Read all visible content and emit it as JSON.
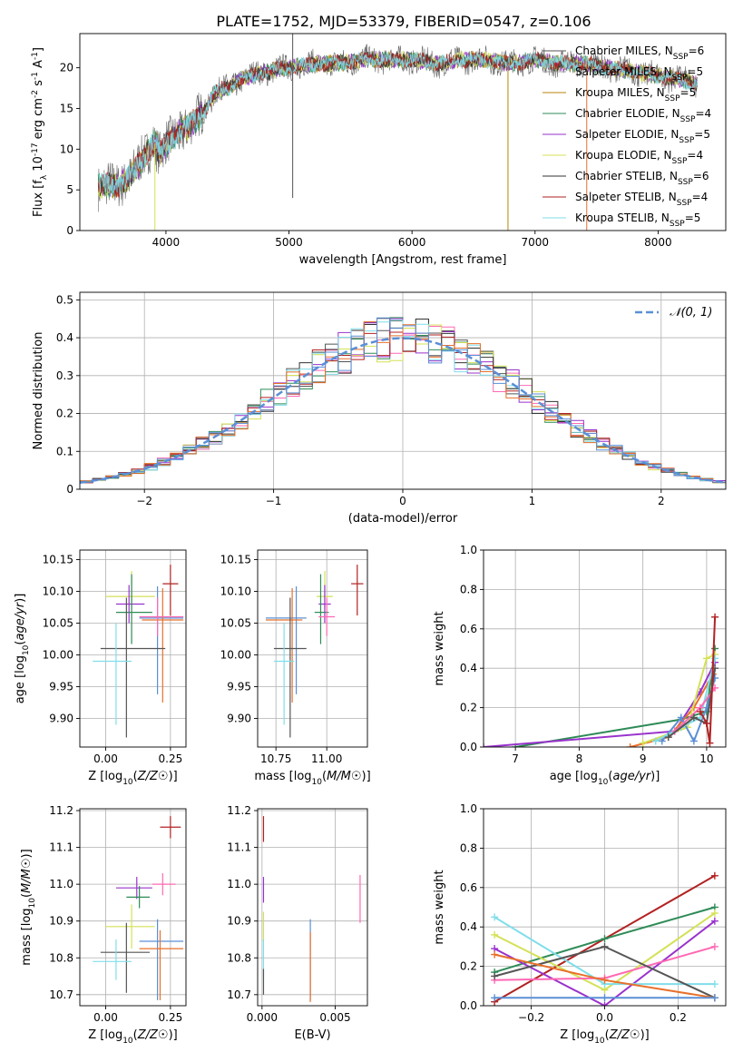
{
  "figure": {
    "title": "PLATE=1752, MJD=53379, FIBERID=0547, z=0.106"
  },
  "chart_data": [
    {
      "id": "spectrum",
      "type": "line",
      "xlabel": "wavelength [Angstrom, rest frame]",
      "ylabel": "Flux [f_λ 10^-17 erg cm^-2 s^-1 A^-1]",
      "xlim": [
        3300,
        8550
      ],
      "ylim": [
        0,
        24.2
      ],
      "xticks": [
        4000,
        5000,
        6000,
        7000,
        8000
      ],
      "yticks": [
        0,
        5,
        10,
        15,
        20
      ],
      "legend_position": "top-right",
      "legend": [
        {
          "label": "Chabrier MILES, N_SSP=6",
          "color": "#555555"
        },
        {
          "label": "Salpeter MILES, N_SSP=5",
          "color": "#a0a0a0"
        },
        {
          "label": "Kroupa MILES, N_SSP=5",
          "color": "#b8860b"
        },
        {
          "label": "Chabrier ELODIE, N_SSP=4",
          "color": "#2e8b57"
        },
        {
          "label": "Salpeter ELODIE, N_SSP=5",
          "color": "#9932cc"
        },
        {
          "label": "Kroupa ELODIE, N_SSP=4",
          "color": "#d4e157"
        },
        {
          "label": "Chabrier STELIB, N_SSP=6",
          "color": "#333333"
        },
        {
          "label": "Salpeter STELIB, N_SSP=4",
          "color": "#b22222"
        },
        {
          "label": "Kroupa STELIB, N_SSP=5",
          "color": "#80deea"
        }
      ],
      "continuum_knots": {
        "x": [
          3450,
          3600,
          3700,
          3800,
          3900,
          3950,
          4000,
          4100,
          4200,
          4300,
          4400,
          4500,
          4600,
          4800,
          5000,
          5200,
          5400,
          5600,
          5800,
          6000,
          6200,
          6400,
          6600,
          6800,
          7000,
          7200,
          7400,
          7600,
          7800,
          8000,
          8200,
          8320
        ],
        "y": [
          5.5,
          5.5,
          6.5,
          8.5,
          11.0,
          9.5,
          10.5,
          12.0,
          13.0,
          14.5,
          17.0,
          17.5,
          18.5,
          19.5,
          20.0,
          20.5,
          20.5,
          21.0,
          21.0,
          21.0,
          20.5,
          21.0,
          21.0,
          20.5,
          21.0,
          20.5,
          20.5,
          20.0,
          19.5,
          19.0,
          18.5,
          18.0
        ]
      },
      "sharp_spikes": [
        {
          "x": 3910,
          "y_low": 0
        },
        {
          "x": 5030,
          "y_high": 24.2,
          "y_low": 4
        },
        {
          "x": 6780,
          "y_low": 0
        },
        {
          "x": 7420,
          "y_low": 0
        }
      ]
    },
    {
      "id": "residuals",
      "type": "line",
      "xlabel": "(data-model)/error",
      "ylabel": "Normed distribution",
      "xlim": [
        -2.5,
        2.5
      ],
      "ylim": [
        0,
        0.52
      ],
      "xticks": [
        -2,
        -1,
        0,
        1,
        2
      ],
      "yticks": [
        0.0,
        0.1,
        0.2,
        0.3,
        0.4,
        0.5
      ],
      "legend_position": "top-right",
      "series": [
        {
          "name": "N(0,1)",
          "label_text": "𝒩(0, 1)",
          "color": "#5b8fd6",
          "style": "dashed"
        }
      ],
      "histogram_bin_width": 0.1,
      "histogram_colors": [
        "#555555",
        "#ff69b4",
        "#2e8b57",
        "#9932cc",
        "#d4e157",
        "#333333",
        "#b22222",
        "#80deea",
        "#e8702a",
        "#5b8fd6"
      ]
    },
    {
      "id": "age_vs_Z",
      "type": "scatter",
      "xlabel": "Z [log10(Z/Z☉)]",
      "ylabel": "age [log10(age/yr)]",
      "xlim": [
        -0.1,
        0.31
      ],
      "ylim": [
        9.855,
        10.165
      ],
      "xticks": [
        0.0,
        0.25
      ],
      "xtick_labels": [
        "0.00",
        "0.25"
      ],
      "yticks": [
        9.9,
        9.95,
        10.0,
        10.05,
        10.1,
        10.15
      ],
      "ytick_labels": [
        "9.90",
        "9.95",
        "10.00",
        "10.05",
        "10.10",
        "10.15"
      ],
      "points": [
        {
          "x": 0.1,
          "y": 10.092,
          "xerr": [
            0.1,
            0.09
          ],
          "yerr": [
            0.02,
            0.04
          ],
          "color": "#d4e157"
        },
        {
          "x": 0.09,
          "y": 10.08,
          "xerr": [
            0.05,
            0.06
          ],
          "yerr": [
            0.03,
            0.03
          ],
          "color": "#9932cc"
        },
        {
          "x": 0.1,
          "y": 10.067,
          "xerr": [
            0.06,
            0.08
          ],
          "yerr": [
            0.05,
            0.06
          ],
          "color": "#2e8b57"
        },
        {
          "x": 0.2,
          "y": 10.058,
          "xerr": [
            0.07,
            0.1
          ],
          "yerr": [
            0.12,
            0.05
          ],
          "color": "#5b8fd6"
        },
        {
          "x": 0.22,
          "y": 10.055,
          "xerr": [
            0.08,
            0.08
          ],
          "yerr": [
            0.13,
            0.05
          ],
          "color": "#e8702a"
        },
        {
          "x": 0.2,
          "y": 10.06,
          "xerr": [
            0.07,
            0.1
          ],
          "yerr": [
            0.03,
            0.03
          ],
          "color": "#ff69b4"
        },
        {
          "x": 0.25,
          "y": 10.112,
          "xerr": [
            0.03,
            0.03
          ],
          "yerr": [
            0.05,
            0.03
          ],
          "color": "#b22222"
        },
        {
          "x": 0.08,
          "y": 10.01,
          "xerr": [
            0.1,
            0.15
          ],
          "yerr": [
            0.14,
            0.08
          ],
          "color": "#555555"
        },
        {
          "x": 0.04,
          "y": 9.99,
          "xerr": [
            0.09,
            0.06
          ],
          "yerr": [
            0.1,
            0.06
          ],
          "color": "#80deea"
        }
      ]
    },
    {
      "id": "age_vs_mass",
      "type": "scatter",
      "xlabel": "mass [log10(M/M☉)]",
      "ylabel": "",
      "xlim": [
        10.66,
        11.2
      ],
      "ylim": [
        9.855,
        10.165
      ],
      "xticks": [
        10.75,
        11.0
      ],
      "xtick_labels": [
        "10.75",
        "11.00"
      ],
      "yticks": [
        9.9,
        9.95,
        10.0,
        10.05,
        10.1,
        10.15
      ],
      "ytick_labels": [
        "9.90",
        "9.95",
        "10.00",
        "10.05",
        "10.10",
        "10.15"
      ],
      "points": [
        {
          "x": 10.99,
          "y": 10.092,
          "xerr": [
            0.04,
            0.04
          ],
          "yerr": [
            0.02,
            0.04
          ],
          "color": "#d4e157"
        },
        {
          "x": 10.99,
          "y": 10.08,
          "xerr": [
            0.03,
            0.03
          ],
          "yerr": [
            0.03,
            0.03
          ],
          "color": "#9932cc"
        },
        {
          "x": 10.97,
          "y": 10.067,
          "xerr": [
            0.03,
            0.04
          ],
          "yerr": [
            0.05,
            0.06
          ],
          "color": "#2e8b57"
        },
        {
          "x": 10.85,
          "y": 10.058,
          "xerr": [
            0.15,
            0.05
          ],
          "yerr": [
            0.12,
            0.05
          ],
          "color": "#5b8fd6"
        },
        {
          "x": 10.83,
          "y": 10.055,
          "xerr": [
            0.13,
            0.05
          ],
          "yerr": [
            0.13,
            0.05
          ],
          "color": "#e8702a"
        },
        {
          "x": 11.0,
          "y": 10.06,
          "xerr": [
            0.04,
            0.04
          ],
          "yerr": [
            0.03,
            0.03
          ],
          "color": "#ff69b4"
        },
        {
          "x": 11.15,
          "y": 10.112,
          "xerr": [
            0.03,
            0.03
          ],
          "yerr": [
            0.05,
            0.03
          ],
          "color": "#b22222"
        },
        {
          "x": 10.82,
          "y": 10.01,
          "xerr": [
            0.08,
            0.08
          ],
          "yerr": [
            0.14,
            0.08
          ],
          "color": "#555555"
        },
        {
          "x": 10.79,
          "y": 9.99,
          "xerr": [
            0.05,
            0.05
          ],
          "yerr": [
            0.1,
            0.06
          ],
          "color": "#80deea"
        }
      ]
    },
    {
      "id": "mass_weight_vs_age",
      "type": "line",
      "xlabel": "age [log10(age/yr)]",
      "ylabel": "mass weight",
      "xlim": [
        6.5,
        10.3
      ],
      "ylim": [
        0,
        1.0
      ],
      "xticks": [
        7,
        8,
        9,
        10
      ],
      "yticks": [
        0.0,
        0.2,
        0.4,
        0.6,
        0.8,
        1.0
      ],
      "ytick_labels": [
        "0.0",
        "0.2",
        "0.4",
        "0.6",
        "0.8",
        "1.0"
      ],
      "series": [
        {
          "color": "#2e8b57",
          "x": [
            7.0,
            9.6,
            10.0,
            10.13
          ],
          "y": [
            0.0,
            0.14,
            0.18,
            0.5
          ]
        },
        {
          "color": "#9932cc",
          "x": [
            6.5,
            9.5,
            9.9,
            10.13
          ],
          "y": [
            0.0,
            0.08,
            0.28,
            0.43
          ]
        },
        {
          "color": "#e8702a",
          "x": [
            8.8,
            9.4,
            9.8,
            10.1
          ],
          "y": [
            0.0,
            0.05,
            0.2,
            0.37
          ]
        },
        {
          "color": "#d4e157",
          "x": [
            9.0,
            9.7,
            10.0,
            10.13
          ],
          "y": [
            0.02,
            0.1,
            0.45,
            0.47
          ]
        },
        {
          "color": "#5b8fd6",
          "x": [
            9.3,
            9.6,
            9.8,
            10.0,
            10.13
          ],
          "y": [
            0.03,
            0.15,
            0.03,
            0.2,
            0.35
          ]
        },
        {
          "color": "#80deea",
          "x": [
            9.2,
            9.6,
            9.9,
            10.13
          ],
          "y": [
            0.03,
            0.1,
            0.15,
            0.45
          ]
        },
        {
          "color": "#ff69b4",
          "x": [
            9.5,
            9.9,
            10.13
          ],
          "y": [
            0.08,
            0.2,
            0.3
          ]
        },
        {
          "color": "#555555",
          "x": [
            9.4,
            9.8,
            10.0,
            10.13
          ],
          "y": [
            0.05,
            0.15,
            0.12,
            0.4
          ]
        },
        {
          "color": "#b22222",
          "x": [
            9.9,
            10.0,
            10.05,
            10.13
          ],
          "y": [
            0.18,
            0.12,
            0.02,
            0.66
          ]
        }
      ]
    },
    {
      "id": "mass_vs_Z",
      "type": "scatter",
      "xlabel": "Z [log10(Z/Z☉)]",
      "ylabel": "mass [log10(M/M☉)]",
      "xlim": [
        -0.1,
        0.31
      ],
      "ylim": [
        10.67,
        11.205
      ],
      "xticks": [
        0.0,
        0.25
      ],
      "xtick_labels": [
        "0.00",
        "0.25"
      ],
      "yticks": [
        10.7,
        10.8,
        10.9,
        11.0,
        11.1,
        11.2
      ],
      "ytick_labels": [
        "10.7",
        "10.8",
        "10.9",
        "11.0",
        "11.1",
        "11.2"
      ],
      "points": [
        {
          "x": 0.25,
          "y": 11.155,
          "xerr": [
            0.04,
            0.04
          ],
          "yerr": [
            0.03,
            0.03
          ],
          "color": "#b22222"
        },
        {
          "x": 0.12,
          "y": 10.99,
          "xerr": [
            0.08,
            0.06
          ],
          "yerr": [
            0.03,
            0.03
          ],
          "color": "#9932cc"
        },
        {
          "x": 0.22,
          "y": 11.0,
          "xerr": [
            0.04,
            0.05
          ],
          "yerr": [
            0.03,
            0.03
          ],
          "color": "#ff69b4"
        },
        {
          "x": 0.13,
          "y": 10.965,
          "xerr": [
            0.05,
            0.04
          ],
          "yerr": [
            0.03,
            0.03
          ],
          "color": "#2e8b57"
        },
        {
          "x": 0.1,
          "y": 10.885,
          "xerr": [
            0.1,
            0.09
          ],
          "yerr": [
            0.06,
            0.06
          ],
          "color": "#d4e157"
        },
        {
          "x": 0.2,
          "y": 10.845,
          "xerr": [
            0.07,
            0.1
          ],
          "yerr": [
            0.16,
            0.06
          ],
          "color": "#5b8fd6"
        },
        {
          "x": 0.21,
          "y": 10.825,
          "xerr": [
            0.08,
            0.09
          ],
          "yerr": [
            0.14,
            0.05
          ],
          "color": "#e8702a"
        },
        {
          "x": 0.08,
          "y": 10.815,
          "xerr": [
            0.1,
            0.09
          ],
          "yerr": [
            0.11,
            0.08
          ],
          "color": "#555555"
        },
        {
          "x": 0.04,
          "y": 10.79,
          "xerr": [
            0.09,
            0.06
          ],
          "yerr": [
            0.05,
            0.06
          ],
          "color": "#80deea"
        }
      ]
    },
    {
      "id": "mass_vs_ebv",
      "type": "scatter",
      "xlabel": "E(B-V)",
      "ylabel": "",
      "xlim": [
        -0.0003,
        0.0072
      ],
      "ylim": [
        10.67,
        11.205
      ],
      "xticks": [
        0.0,
        0.005
      ],
      "xtick_labels": [
        "0.000",
        "0.005"
      ],
      "yticks": [
        10.7,
        10.8,
        10.9,
        11.0,
        11.1,
        11.2
      ],
      "ytick_labels": [
        "10.7",
        "10.8",
        "10.9",
        "11.0",
        "11.1",
        "11.2"
      ],
      "points": [
        {
          "x": 0.0001,
          "y": 11.155,
          "xerr": [
            0.0,
            0.0
          ],
          "yerr": [
            0.04,
            0.03
          ],
          "color": "#b22222"
        },
        {
          "x": 0.0001,
          "y": 10.99,
          "xerr": [
            0.0,
            0.0
          ],
          "yerr": [
            0.04,
            0.03
          ],
          "color": "#9932cc"
        },
        {
          "x": 0.0001,
          "y": 10.885,
          "xerr": [
            0.0,
            0.0
          ],
          "yerr": [
            0.04,
            0.04
          ],
          "color": "#d4e157"
        },
        {
          "x": 0.0001,
          "y": 10.79,
          "xerr": [
            0.0,
            0.0
          ],
          "yerr": [
            0.05,
            0.06
          ],
          "color": "#80deea"
        },
        {
          "x": 0.0001,
          "y": 10.74,
          "xerr": [
            0.0,
            0.0
          ],
          "yerr": [
            0.04,
            0.03
          ],
          "color": "#555555"
        },
        {
          "x": 0.0033,
          "y": 10.845,
          "xerr": [
            0.0,
            0.0
          ],
          "yerr": [
            0.16,
            0.06
          ],
          "color": "#5b8fd6"
        },
        {
          "x": 0.0033,
          "y": 10.82,
          "xerr": [
            0.0,
            0.0
          ],
          "yerr": [
            0.14,
            0.05
          ],
          "color": "#e8702a"
        },
        {
          "x": 0.0067,
          "y": 10.965,
          "xerr": [
            0.0,
            0.0
          ],
          "yerr": [
            0.07,
            0.06
          ],
          "color": "#ff69b4"
        }
      ]
    },
    {
      "id": "mass_weight_vs_Z",
      "type": "line",
      "xlabel": "Z [log10(Z/Z☉)]",
      "ylabel": "mass weight",
      "xlim": [
        -0.33,
        0.33
      ],
      "ylim": [
        0,
        1.0
      ],
      "xticks": [
        -0.2,
        0.0,
        0.2
      ],
      "xtick_labels": [
        "−0.2",
        "0.0",
        "0.2"
      ],
      "yticks": [
        0.0,
        0.2,
        0.4,
        0.6,
        0.8,
        1.0
      ],
      "ytick_labels": [
        "0.0",
        "0.2",
        "0.4",
        "0.6",
        "0.8",
        "1.0"
      ],
      "series": [
        {
          "color": "#b22222",
          "x": [
            -0.3,
            0.3
          ],
          "y": [
            0.02,
            0.66
          ]
        },
        {
          "color": "#2e8b57",
          "x": [
            -0.3,
            0.0,
            0.3
          ],
          "y": [
            0.17,
            0.34,
            0.5
          ]
        },
        {
          "color": "#9932cc",
          "x": [
            -0.3,
            0.0,
            0.3
          ],
          "y": [
            0.29,
            0.0,
            0.43
          ]
        },
        {
          "color": "#d4e157",
          "x": [
            -0.3,
            0.0,
            0.3
          ],
          "y": [
            0.36,
            0.08,
            0.47
          ]
        },
        {
          "color": "#80deea",
          "x": [
            -0.3,
            0.0,
            0.3
          ],
          "y": [
            0.45,
            0.11,
            0.11
          ]
        },
        {
          "color": "#ff69b4",
          "x": [
            -0.3,
            0.0,
            0.3
          ],
          "y": [
            0.13,
            0.14,
            0.3
          ]
        },
        {
          "color": "#555555",
          "x": [
            -0.3,
            0.0,
            0.3
          ],
          "y": [
            0.15,
            0.3,
            0.04
          ]
        },
        {
          "color": "#e8702a",
          "x": [
            -0.3,
            0.0,
            0.3
          ],
          "y": [
            0.26,
            0.13,
            0.04
          ]
        },
        {
          "color": "#5b8fd6",
          "x": [
            -0.3,
            0.0,
            0.3
          ],
          "y": [
            0.04,
            0.04,
            0.04
          ]
        }
      ]
    }
  ]
}
